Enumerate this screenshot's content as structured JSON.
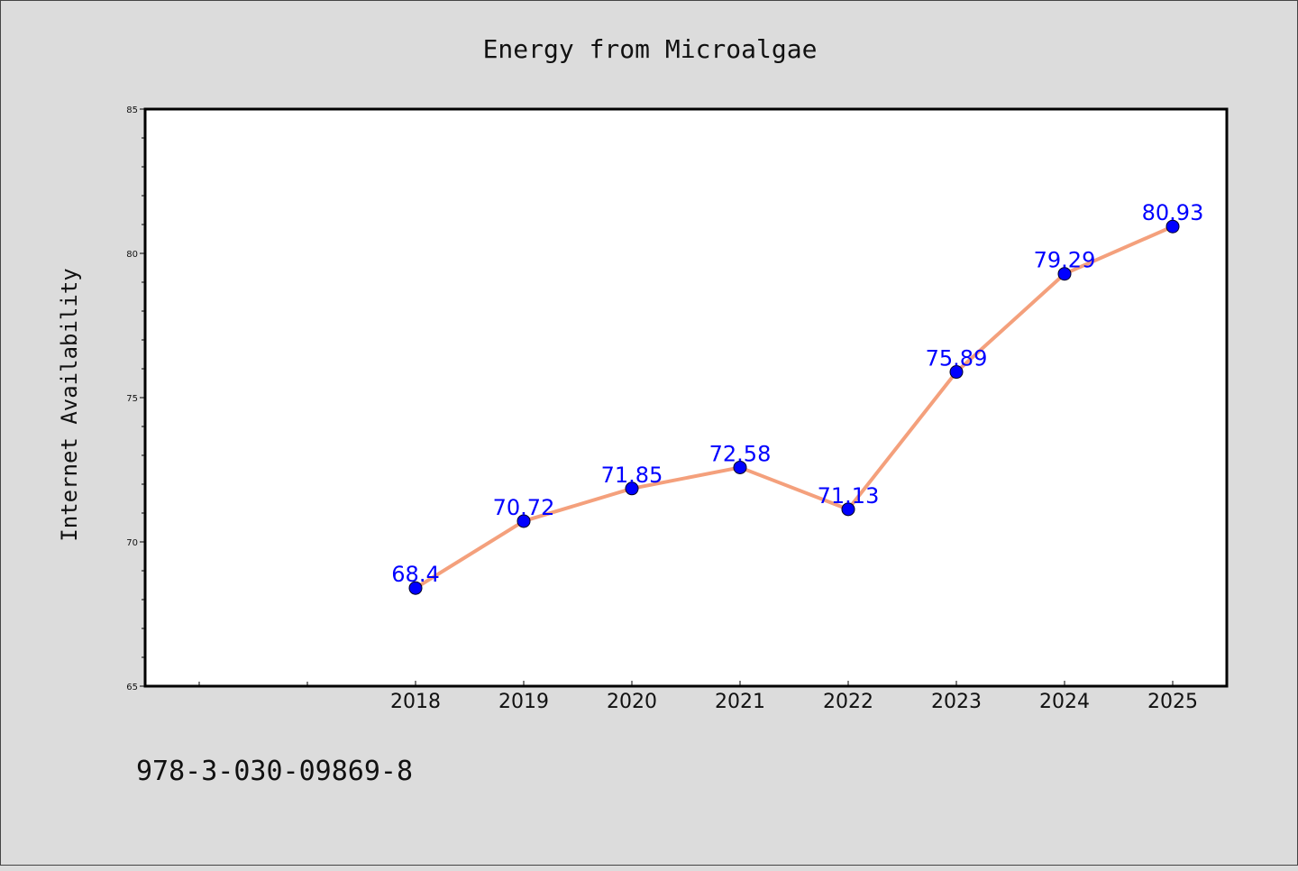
{
  "chart_data": {
    "type": "line",
    "title": "Energy from Microalgae",
    "ylabel": "Internet Availability",
    "xlabel": "",
    "categories": [
      "2018",
      "2019",
      "2020",
      "2021",
      "2022",
      "2023",
      "2024",
      "2025"
    ],
    "series": [
      {
        "values": [
          68.4,
          70.72,
          71.85,
          72.58,
          71.13,
          75.89,
          79.29,
          80.93
        ],
        "labels": [
          "68.4",
          "70.72",
          "71.85",
          "72.58",
          "71.13",
          "75.89",
          "79.29",
          "80.93"
        ]
      }
    ],
    "ylim": [
      65,
      85
    ],
    "yticks": [
      "65",
      "70",
      "75",
      "80",
      "85"
    ],
    "grid": false,
    "legend": "none",
    "colors": {
      "line": "#f4a07c",
      "marker": "#0000ff",
      "data_label": "#0000ff",
      "plot_background": "#ffffff",
      "page_background": "#dcdcdc"
    }
  },
  "footer": {
    "text": "978-3-030-09869-8"
  }
}
